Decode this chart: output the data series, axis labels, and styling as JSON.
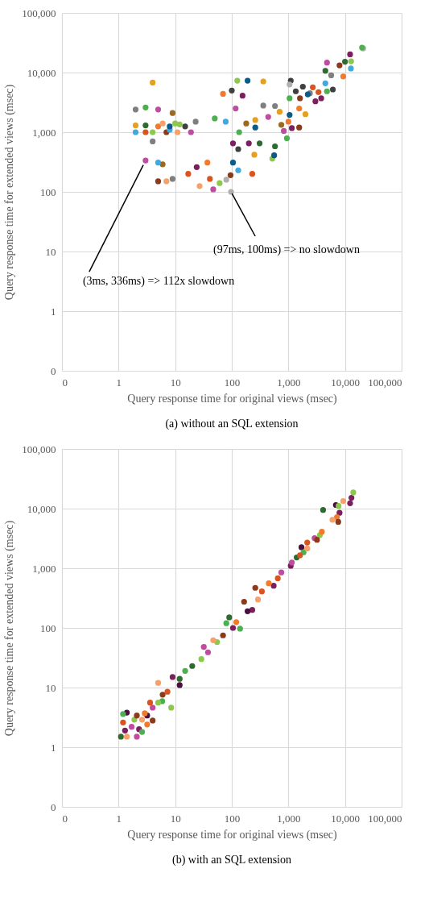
{
  "chart_data": [
    {
      "type": "scatter",
      "title": "(a) without an SQL extension",
      "xlabel": "Query response time for original views (msec)",
      "ylabel": "Query response time for extended views (msec)",
      "xlim": [
        0.1,
        100000
      ],
      "ylim": [
        0.1,
        100000
      ],
      "log": "xy",
      "grid": true,
      "marker": "circle",
      "xticks": [
        {
          "value": 0.1,
          "label": "0"
        },
        1,
        10,
        100,
        {
          "value": 1000,
          "label": "1,000"
        },
        {
          "value": 10000,
          "label": "10,000"
        },
        {
          "value": 100000,
          "label": "100,000"
        }
      ],
      "yticks": [
        {
          "value": 0.1,
          "label": "0"
        },
        1,
        10,
        100,
        {
          "value": 1000,
          "label": "1,000"
        },
        {
          "value": 10000,
          "label": "10,000"
        },
        {
          "value": 100000,
          "label": "100,000"
        }
      ],
      "annotations": [
        {
          "text": "(3ms, 336ms) => 112x slowdown",
          "x": 3,
          "y": 336
        },
        {
          "text": "(97ms, 100ms) => no slowdown",
          "x": 97,
          "y": 100
        }
      ],
      "series": [
        {
          "color": "#7f7f7f",
          "x": [
            2,
            23,
            360,
            580,
            5700,
            2400,
            9,
            4
          ],
          "values": [
            2400,
            1500,
            2800,
            2750,
            9000,
            4500,
            165,
            700
          ]
        },
        {
          "color": "#404040",
          "x": [
            100,
            1100,
            1350,
            1800,
            6100,
            15,
            130
          ],
          "values": [
            5000,
            7300,
            4850,
            5800,
            5200,
            1250,
            520
          ]
        },
        {
          "color": "#b0b0b0",
          "x": [
            97,
            1050,
            21000,
            80
          ],
          "values": [
            100,
            6300,
            25400,
            160
          ]
        },
        {
          "color": "#7b1f5f",
          "x": [
            155,
            12300,
            3000,
            3800,
            105,
            24,
            200,
            1150
          ],
          "values": [
            4100,
            20200,
            3300,
            3700,
            650,
            260,
            650,
            1170
          ]
        },
        {
          "color": "#c04ca0",
          "x": [
            3,
            5,
            117,
            47,
            19,
            4800,
            440,
            830
          ],
          "values": [
            336,
            2400,
            2500,
            110,
            1000,
            14650,
            1800,
            1050
          ]
        },
        {
          "color": "#4caf50",
          "x": [
            3,
            50,
            135,
            940,
            1050,
            4800,
            20000
          ],
          "values": [
            2600,
            1700,
            1000,
            790,
            3700,
            4850,
            26200
          ]
        },
        {
          "color": "#8cc84b",
          "x": [
            125,
            61,
            12,
            520,
            12800,
            4,
            10
          ],
          "values": [
            7300,
            140,
            1350,
            360,
            15400,
            1000,
            1400
          ]
        },
        {
          "color": "#e6a020",
          "x": [
            4,
            360,
            700,
            2000,
            260,
            2,
            250
          ],
          "values": [
            6800,
            7100,
            2200,
            2000,
            1600,
            1300,
            420
          ]
        },
        {
          "color": "#f07b2c",
          "x": [
            70,
            37,
            1550,
            1000,
            9300,
            5
          ],
          "values": [
            4400,
            310,
            2500,
            1500,
            8600,
            1250
          ]
        },
        {
          "color": "#d9541e",
          "x": [
            17,
            41,
            3400,
            2700,
            230,
            3
          ],
          "values": [
            200,
            165,
            4700,
            5650,
            200,
            1000
          ]
        },
        {
          "color": "#f7a06a",
          "x": [
            7,
            27,
            11,
            6
          ],
          "values": [
            150,
            125,
            1000,
            1400
          ]
        },
        {
          "color": "#8b3a1a",
          "x": [
            5,
            1600,
            1550,
            8000,
            7,
            95
          ],
          "values": [
            150,
            3700,
            1200,
            13200,
            1000,
            190
          ]
        },
        {
          "color": "#9b6a1f",
          "x": [
            6,
            9,
            750,
            180
          ],
          "values": [
            290,
            2100,
            1330,
            1400
          ]
        },
        {
          "color": "#41a8e0",
          "x": [
            5,
            78,
            12700,
            4500,
            130,
            2,
            8
          ],
          "values": [
            310,
            1500,
            11700,
            6600,
            230,
            1000,
            1100
          ]
        },
        {
          "color": "#0a5a8a",
          "x": [
            190,
            2200,
            1050,
            260,
            560,
            105,
            8
          ],
          "values": [
            7300,
            4300,
            1950,
            1200,
            410,
            310,
            1250
          ]
        },
        {
          "color": "#2e6b30",
          "x": [
            10000,
            310,
            580,
            4500,
            3
          ],
          "values": [
            15200,
            650,
            580,
            10700,
            1300
          ]
        }
      ]
    },
    {
      "type": "scatter",
      "title": "(b) with an SQL extension",
      "xlabel": "Query response time for original views (msec)",
      "ylabel": "Query response time for extended views (msec)",
      "xlim": [
        0.1,
        100000
      ],
      "ylim": [
        0.1,
        100000
      ],
      "log": "xy",
      "grid": true,
      "marker": "circle",
      "xticks": [
        {
          "value": 0.1,
          "label": "0"
        },
        1,
        10,
        100,
        {
          "value": 1000,
          "label": "1,000"
        },
        {
          "value": 10000,
          "label": "10,000"
        },
        {
          "value": 100000,
          "label": "100,000"
        }
      ],
      "yticks": [
        {
          "value": 0.1,
          "label": "0"
        },
        1,
        10,
        100,
        {
          "value": 1000,
          "label": "1,000"
        },
        {
          "value": 10000,
          "label": "10,000"
        },
        {
          "value": 100000,
          "label": "100,000"
        }
      ],
      "series": [
        {
          "color": "#7b1f5f",
          "x": [
            13000,
            12300,
            1100,
            550,
            230,
            105,
            9,
            2.3,
            1.3,
            8000
          ],
          "values": [
            15200,
            12300,
            1100,
            510,
            200,
            100,
            15,
            2,
            1.9,
            8500
          ]
        },
        {
          "color": "#4a0f3f",
          "x": [
            6900,
            1700,
            190,
            12,
            3.2,
            1.4
          ],
          "values": [
            11500,
            2250,
            190,
            11,
            3.4,
            3.8
          ]
        },
        {
          "color": "#c04ca0",
          "x": [
            2900,
            1150,
            750,
            32,
            38,
            4,
            2.1,
            1.7
          ],
          "values": [
            3200,
            1250,
            850,
            48,
            39,
            4.6,
            1.5,
            2.2
          ]
        },
        {
          "color": "#4caf50",
          "x": [
            1850,
            140,
            80,
            15,
            1.2,
            2.6,
            5.9
          ],
          "values": [
            1850,
            97,
            120,
            19,
            3.6,
            1.8,
            5.9
          ]
        },
        {
          "color": "#2e6b30",
          "x": [
            4100,
            1400,
            20,
            90,
            12,
            1.1
          ],
          "values": [
            9500,
            1520,
            23,
            150,
            14,
            1.5
          ]
        },
        {
          "color": "#8cc84b",
          "x": [
            14000,
            7700,
            3600,
            55,
            29,
            8.5,
            5,
            1.9
          ],
          "values": [
            18700,
            11100,
            3600,
            58,
            30,
            4.6,
            5.6,
            2.9
          ]
        },
        {
          "color": "#f07b2c",
          "x": [
            7200,
            3900,
            450,
            120,
            2.9,
            3.2
          ],
          "values": [
            7200,
            4100,
            560,
            125,
            3.7,
            2.4
          ]
        },
        {
          "color": "#f7a06a",
          "x": [
            9300,
            6000,
            2150,
            290,
            47,
            5,
            2.6,
            1.4
          ],
          "values": [
            13400,
            6500,
            2150,
            300,
            62,
            12,
            2.9,
            1.5
          ]
        },
        {
          "color": "#8b3a1a",
          "x": [
            7600,
            3200,
            260,
            165,
            70,
            6,
            4,
            2.1
          ],
          "values": [
            6000,
            3000,
            470,
            275,
            75,
            7.6,
            2.8,
            3.4
          ]
        },
        {
          "color": "#d9541e",
          "x": [
            2150,
            1600,
            340,
            650,
            7.3,
            3.6,
            1.2
          ],
          "values": [
            2700,
            1650,
            410,
            680,
            8.5,
            5.6,
            2.6
          ]
        }
      ]
    }
  ]
}
